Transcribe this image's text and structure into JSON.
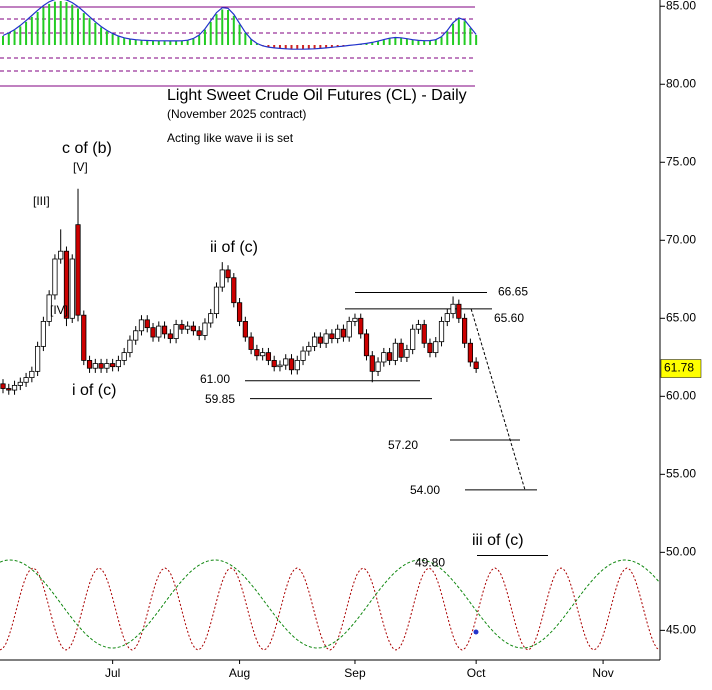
{
  "chart_data": {
    "type": "candlestick",
    "title": "Light Sweet Crude Oil Futures (CL) - Daily",
    "subtitle": "(November 2025 contract)",
    "note": "Acting like wave ii is set",
    "annotations": [
      "c of (b)",
      "[V]",
      "[III]",
      "[IV]",
      "i of (c)",
      "ii of (c)",
      "iii of (c)"
    ],
    "categories": [
      null,
      null,
      null,
      null,
      null,
      null,
      null,
      null,
      null,
      null,
      null,
      null,
      null,
      null,
      null,
      null,
      null,
      null,
      null,
      "Jul",
      null,
      null,
      null,
      null,
      null,
      null,
      null,
      null,
      null,
      null,
      null,
      null,
      null,
      null,
      null,
      null,
      null,
      null,
      null,
      null,
      null,
      "Aug",
      null,
      null,
      null,
      null,
      null,
      null,
      null,
      null,
      null,
      null,
      null,
      null,
      null,
      null,
      null,
      null,
      null,
      null,
      null,
      "Sep",
      null,
      null,
      null,
      null,
      null,
      null,
      null,
      null,
      null,
      null,
      null,
      null,
      null,
      null,
      null,
      null,
      null,
      null,
      null,
      null,
      "Oct",
      null,
      null,
      null,
      null,
      null,
      null,
      null,
      null,
      null,
      null,
      null,
      null,
      null,
      null,
      null,
      null,
      null,
      null,
      null,
      null,
      null,
      "Nov",
      null,
      null,
      null,
      null,
      null,
      null,
      null,
      null,
      null,
      null
    ],
    "open": [
      60.8,
      60.5,
      60.4,
      60.7,
      60.9,
      61.2,
      61.6,
      63.2,
      64.8,
      66.5,
      68.8,
      69.3,
      65.0,
      71.0,
      65.2,
      62.3,
      61.8,
      62.1,
      61.8,
      62.1,
      61.9,
      62.3,
      62.8,
      63.6,
      64.2,
      64.9,
      64.4,
      63.8,
      64.5,
      64.0,
      63.7,
      64.6,
      64.3,
      64.5,
      64.2,
      63.9,
      64.7,
      65.3,
      67.0,
      68.1,
      67.6,
      66.0,
      64.8,
      63.8,
      63.0,
      62.6,
      62.8,
      62.3,
      61.9,
      62.0,
      62.4,
      61.7,
      62.3,
      62.9,
      63.2,
      63.8,
      63.4,
      64.0,
      63.7,
      64.3,
      63.8,
      64.8,
      65.0,
      64.0,
      62.6,
      61.6,
      62.2,
      62.8,
      62.3,
      63.4,
      62.5,
      63.0,
      64.3,
      64.6,
      63.4,
      62.8,
      63.5,
      64.8,
      65.3,
      65.9,
      65.0,
      63.4,
      62.2,
      null,
      null,
      null,
      null,
      null,
      null,
      null,
      null,
      null,
      null,
      null,
      null,
      null,
      null,
      null,
      null,
      null,
      null,
      null,
      null,
      null,
      null,
      null,
      null,
      null,
      null,
      null,
      null,
      null,
      null,
      null,
      null
    ],
    "high": [
      61.1,
      60.8,
      61.0,
      61.2,
      61.5,
      61.9,
      63.5,
      65.1,
      66.8,
      69.1,
      70.7,
      69.6,
      69.1,
      73.3,
      65.5,
      62.6,
      62.4,
      62.4,
      62.4,
      62.4,
      62.6,
      63.1,
      63.9,
      64.5,
      65.2,
      65.2,
      64.7,
      64.8,
      64.8,
      64.3,
      64.9,
      64.9,
      64.8,
      64.8,
      64.5,
      65.0,
      65.6,
      67.3,
      68.6,
      68.4,
      67.9,
      66.3,
      65.1,
      64.1,
      63.3,
      63.1,
      63.1,
      62.6,
      62.3,
      62.7,
      62.7,
      62.6,
      63.2,
      63.5,
      64.1,
      64.1,
      64.3,
      64.3,
      64.6,
      64.6,
      65.1,
      65.3,
      65.3,
      64.3,
      62.9,
      62.5,
      63.1,
      63.1,
      63.7,
      63.7,
      63.3,
      64.6,
      64.9,
      64.9,
      63.7,
      63.8,
      65.1,
      65.6,
      66.4,
      66.2,
      65.3,
      63.7,
      62.5,
      null,
      null,
      null,
      null,
      null,
      null,
      null,
      null,
      null,
      null,
      null,
      null,
      null,
      null,
      null,
      null,
      null,
      null,
      null,
      null,
      null,
      null,
      null,
      null,
      null,
      null,
      null,
      null,
      null,
      null,
      null,
      null
    ],
    "low": [
      60.2,
      60.1,
      60.1,
      60.4,
      60.6,
      60.9,
      61.3,
      62.9,
      64.5,
      66.2,
      68.5,
      64.5,
      64.7,
      64.8,
      62.0,
      61.5,
      61.5,
      61.5,
      61.5,
      61.6,
      61.6,
      62.0,
      62.5,
      63.3,
      63.9,
      64.1,
      63.5,
      63.5,
      63.7,
      63.4,
      63.4,
      64.0,
      64.0,
      63.9,
      63.6,
      63.6,
      64.4,
      65.0,
      66.7,
      67.3,
      65.7,
      64.5,
      63.5,
      62.7,
      62.3,
      62.3,
      62.0,
      61.6,
      61.6,
      61.7,
      61.4,
      61.4,
      62.0,
      62.6,
      62.9,
      63.1,
      63.1,
      63.4,
      63.4,
      63.5,
      63.5,
      64.5,
      63.7,
      62.3,
      60.9,
      61.3,
      61.9,
      62.0,
      62.0,
      62.2,
      62.2,
      62.7,
      64.0,
      63.1,
      62.5,
      62.5,
      63.2,
      64.5,
      65.0,
      64.7,
      63.1,
      61.9,
      61.5,
      null,
      null,
      null,
      null,
      null,
      null,
      null,
      null,
      null,
      null,
      null,
      null,
      null,
      null,
      null,
      null,
      null,
      null,
      null,
      null,
      null,
      null,
      null,
      null,
      null,
      null,
      null,
      null,
      null,
      null,
      null,
      null
    ],
    "close": [
      60.5,
      60.4,
      60.7,
      60.9,
      61.2,
      61.6,
      63.2,
      64.8,
      66.5,
      68.8,
      69.3,
      65.0,
      68.8,
      65.2,
      62.3,
      61.8,
      62.1,
      61.8,
      62.1,
      61.9,
      62.3,
      62.8,
      63.6,
      64.2,
      64.9,
      64.4,
      63.8,
      64.5,
      64.0,
      63.7,
      64.6,
      64.3,
      64.5,
      64.2,
      63.9,
      64.7,
      65.3,
      67.0,
      68.1,
      67.6,
      66.0,
      64.8,
      63.8,
      63.0,
      62.6,
      62.8,
      62.3,
      61.9,
      62.0,
      62.4,
      61.7,
      62.3,
      62.9,
      63.2,
      63.8,
      63.4,
      64.0,
      63.7,
      64.3,
      63.8,
      64.8,
      65.0,
      64.0,
      62.6,
      61.6,
      62.2,
      62.8,
      62.3,
      63.4,
      62.5,
      63.0,
      64.3,
      64.6,
      63.4,
      62.8,
      63.5,
      64.8,
      65.3,
      65.9,
      65.0,
      63.4,
      62.2,
      61.78,
      null,
      null,
      null,
      null,
      null,
      null,
      null,
      null,
      null,
      null,
      null,
      null,
      null,
      null,
      null,
      null,
      null,
      null,
      null,
      null,
      null,
      null,
      null,
      null,
      null,
      null,
      null,
      null,
      null,
      null,
      null,
      null
    ],
    "up_color": "#ffffff",
    "down_color": "#cc0000",
    "last_price_color": "#ffff00",
    "ylim": [
      43.1,
      85.4
    ],
    "yticks": [
      {
        "value": 45,
        "label": "45.00"
      },
      {
        "value": 50,
        "label": "50.00"
      },
      {
        "value": 55,
        "label": "55.00"
      },
      {
        "value": 60,
        "label": "60.00"
      },
      {
        "value": 65,
        "label": "65.00"
      },
      {
        "value": 70,
        "label": "70.00"
      },
      {
        "value": 75,
        "label": "75.00"
      },
      {
        "value": 80,
        "label": "80.00"
      },
      {
        "value": 85,
        "label": "85.00"
      }
    ],
    "levels": [
      66.65,
      {
        "value": 65.6,
        "label": "65.60"
      },
      {
        "value": 61,
        "label": "61.00"
      },
      59.85,
      {
        "value": 57.2,
        "label": "57.20"
      },
      {
        "value": 54,
        "label": "54.00"
      },
      {
        "value": 49.8,
        "label": "49.80"
      }
    ]
  }
}
